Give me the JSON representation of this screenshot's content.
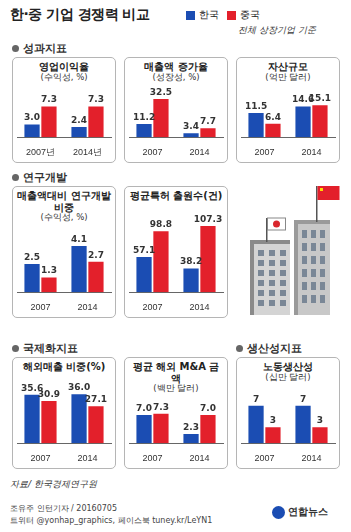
{
  "title": "한·중 기업 경쟁력 비교",
  "legend": {
    "series": [
      {
        "name": "한국",
        "color": "#1b4db3"
      },
      {
        "name": "중국",
        "color": "#e3202b"
      }
    ],
    "note": "전체 상장기업 기준"
  },
  "chart_data": [
    {
      "section": "성과지표",
      "type": "bar",
      "title": "영업이익율",
      "subtitle": "(수익성, %)",
      "categories": [
        "2007년",
        "2014년"
      ],
      "series": [
        {
          "values": [
            3.0,
            2.4
          ],
          "value_labels": [
            "3.0",
            "2.4"
          ]
        },
        {
          "values": [
            7.3,
            7.3
          ],
          "value_labels": [
            "7.3",
            "7.3"
          ]
        }
      ],
      "ylim": [
        0,
        10
      ],
      "grid": false,
      "tick_labels": "x",
      "data_labels": true
    },
    {
      "type": "bar",
      "title": "매출액 증가율",
      "subtitle": "(성장성, %)",
      "categories": [
        "2007",
        "2014"
      ],
      "series": [
        {
          "values": [
            11.2,
            3.4
          ],
          "value_labels": [
            "11.2",
            "3.4"
          ]
        },
        {
          "values": [
            32.5,
            7.7
          ],
          "value_labels": [
            "32.5",
            "7.7"
          ]
        }
      ],
      "ylim": [
        0,
        36
      ],
      "grid": false,
      "tick_labels": "x",
      "data_labels": true
    },
    {
      "type": "bar",
      "title": "자산규모",
      "subtitle": "(억만 달러)",
      "categories": [
        "2007",
        "2014"
      ],
      "series": [
        {
          "values": [
            11.5,
            14.6
          ],
          "value_labels": [
            "11.5",
            "14.6"
          ]
        },
        {
          "values": [
            6.4,
            15.1
          ],
          "value_labels": [
            "6.4",
            "15.1"
          ]
        }
      ],
      "ylim": [
        0,
        20
      ],
      "grid": false,
      "tick_labels": "x",
      "data_labels": true
    },
    {
      "section": "연구개발",
      "type": "bar",
      "title": "매출액대비 연구개발비중",
      "subtitle": "(수익성, %)",
      "categories": [
        "2007",
        "2014"
      ],
      "series": [
        {
          "values": [
            2.5,
            4.1
          ],
          "value_labels": [
            "2.5",
            "4.1"
          ]
        },
        {
          "values": [
            1.3,
            2.7
          ],
          "value_labels": [
            "1.3",
            "2.7"
          ]
        }
      ],
      "ylim": [
        0,
        5
      ],
      "grid": false,
      "tick_labels": "x",
      "data_labels": true
    },
    {
      "type": "bar",
      "title": "평균특허 출원수(건)",
      "categories": [
        "2007",
        "2014"
      ],
      "series": [
        {
          "values": [
            57.1,
            38.2
          ],
          "value_labels": [
            "57.1",
            "38.2"
          ]
        },
        {
          "values": [
            98.8,
            107.3
          ],
          "value_labels": [
            "98.8",
            "107.3"
          ]
        }
      ],
      "ylim": [
        0,
        125
      ],
      "grid": false,
      "tick_labels": "x",
      "data_labels": true
    },
    {
      "section": "국제화지표",
      "type": "bar",
      "title": "해외매출 비중(%)",
      "categories": [
        "2007",
        "2014"
      ],
      "series": [
        {
          "values": [
            35.6,
            36.0
          ],
          "value_labels": [
            "35.6",
            "36.0"
          ]
        },
        {
          "values": [
            30.9,
            27.1
          ],
          "value_labels": [
            "30.9",
            "27.1"
          ]
        }
      ],
      "ylim": [
        0,
        42
      ],
      "grid": false,
      "tick_labels": "x",
      "data_labels": true
    },
    {
      "type": "bar",
      "title": "평균 해외 M&A 금액",
      "subtitle": "(백만 달러)",
      "categories": [
        "2007",
        "2014"
      ],
      "series": [
        {
          "values": [
            7.0,
            2.3
          ],
          "value_labels": [
            "7.0",
            "2.3"
          ]
        },
        {
          "values": [
            7.3,
            7.0
          ],
          "value_labels": [
            "7.3",
            "7.0"
          ]
        }
      ],
      "ylim": [
        0,
        9
      ],
      "grid": false,
      "tick_labels": "x",
      "data_labels": true
    },
    {
      "section": "생산성지표",
      "type": "bar",
      "title": "노동생산성",
      "subtitle": "(십만 달러)",
      "categories": [
        "2007",
        "2014"
      ],
      "series": [
        {
          "values": [
            7,
            7
          ]
        },
        {
          "values": [
            3,
            3
          ]
        }
      ],
      "ylim": [
        0,
        9
      ],
      "grid": false,
      "tick_labels": "x",
      "data_labels": true
    }
  ],
  "source": "자료/ 한국경제연구원",
  "credits": [
    "조유주 인턴기자 / 20160705",
    "트위터 @yonhap_graphics, 페이스북 tuney.kr/LeYN1"
  ],
  "logo": "연합뉴스"
}
